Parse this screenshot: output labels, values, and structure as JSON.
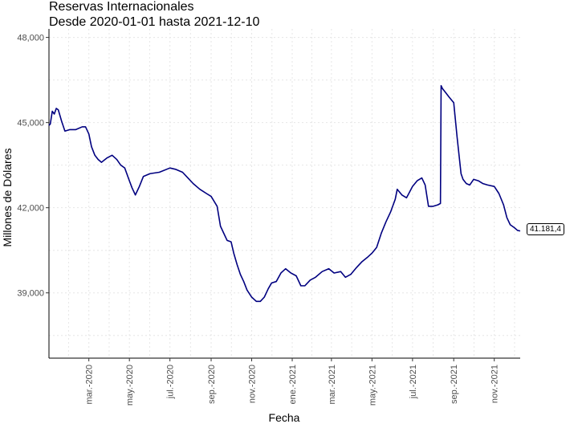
{
  "chart_data": {
    "type": "line",
    "title": "Reservas Internacionales",
    "subtitle": "Desde 2020-01-01 hasta 2021-12-10",
    "xlabel": "Fecha",
    "ylabel": "Millones de Dólares",
    "xlim": [
      "2020-01-01",
      "2021-12-10"
    ],
    "ylim": [
      36700,
      48300
    ],
    "y_ticks": [
      {
        "value": 39000,
        "label": "39,000"
      },
      {
        "value": 42000,
        "label": "42,000"
      },
      {
        "value": 45000,
        "label": "45,000"
      },
      {
        "value": 48000,
        "label": "48,000"
      }
    ],
    "x_ticks": [
      {
        "date": "2020-03-01",
        "label": "mar.-2020"
      },
      {
        "date": "2020-05-01",
        "label": "may.-2020"
      },
      {
        "date": "2020-07-01",
        "label": "jul.-2020"
      },
      {
        "date": "2020-09-01",
        "label": "sep.-2020"
      },
      {
        "date": "2020-11-01",
        "label": "nov.-2020"
      },
      {
        "date": "2021-01-01",
        "label": "ene.-2021"
      },
      {
        "date": "2021-03-01",
        "label": "mar.-2021"
      },
      {
        "date": "2021-05-01",
        "label": "may.-2021"
      },
      {
        "date": "2021-07-01",
        "label": "jul.-2021"
      },
      {
        "date": "2021-09-01",
        "label": "sep.-2021"
      },
      {
        "date": "2021-11-01",
        "label": "nov.-2021"
      }
    ],
    "grid": true,
    "line_color": "#000080",
    "last_value_label": "41.181,4",
    "series": [
      {
        "x": [
          "2020-01-01",
          "2020-01-03",
          "2020-01-06",
          "2020-01-09",
          "2020-01-12",
          "2020-01-15",
          "2020-01-20",
          "2020-01-25",
          "2020-02-01",
          "2020-02-10",
          "2020-02-20",
          "2020-02-25",
          "2020-03-01",
          "2020-03-05",
          "2020-03-10",
          "2020-03-15",
          "2020-03-20",
          "2020-03-28",
          "2020-04-05",
          "2020-04-12",
          "2020-04-18",
          "2020-04-24",
          "2020-05-01",
          "2020-05-05",
          "2020-05-10",
          "2020-05-16",
          "2020-05-22",
          "2020-06-01",
          "2020-06-15",
          "2020-07-01",
          "2020-07-10",
          "2020-07-20",
          "2020-07-28",
          "2020-08-05",
          "2020-08-15",
          "2020-08-25",
          "2020-09-01",
          "2020-09-10",
          "2020-09-15",
          "2020-09-20",
          "2020-09-25",
          "2020-10-01",
          "2020-10-05",
          "2020-10-10",
          "2020-10-15",
          "2020-10-20",
          "2020-10-25",
          "2020-11-01",
          "2020-11-08",
          "2020-11-14",
          "2020-11-20",
          "2020-11-26",
          "2020-12-01",
          "2020-12-08",
          "2020-12-15",
          "2020-12-22",
          "2020-12-30",
          "2021-01-07",
          "2021-01-14",
          "2021-01-20",
          "2021-01-28",
          "2021-02-05",
          "2021-02-15",
          "2021-02-25",
          "2021-03-05",
          "2021-03-15",
          "2021-03-22",
          "2021-03-30",
          "2021-04-08",
          "2021-04-16",
          "2021-04-24",
          "2021-05-01",
          "2021-05-08",
          "2021-05-15",
          "2021-05-22",
          "2021-05-29",
          "2021-06-05",
          "2021-06-08",
          "2021-06-15",
          "2021-06-22",
          "2021-07-01",
          "2021-07-08",
          "2021-07-15",
          "2021-07-20",
          "2021-07-25",
          "2021-08-01",
          "2021-08-08",
          "2021-08-12",
          "2021-08-13",
          "2021-08-15",
          "2021-08-20",
          "2021-08-25",
          "2021-09-01",
          "2021-09-06",
          "2021-09-12",
          "2021-09-15",
          "2021-09-20",
          "2021-09-25",
          "2021-10-01",
          "2021-10-08",
          "2021-10-15",
          "2021-10-22",
          "2021-11-01",
          "2021-11-08",
          "2021-11-15",
          "2021-11-20",
          "2021-11-25",
          "2021-12-01",
          "2021-12-06",
          "2021-12-10"
        ],
        "y": [
          44900,
          44950,
          45400,
          45300,
          45500,
          45450,
          45050,
          44700,
          44750,
          44750,
          44850,
          44850,
          44600,
          44150,
          43850,
          43700,
          43600,
          43750,
          43850,
          43700,
          43500,
          43400,
          42950,
          42700,
          42450,
          42750,
          43100,
          43200,
          43250,
          43400,
          43350,
          43250,
          43050,
          42850,
          42650,
          42500,
          42400,
          42050,
          41350,
          41100,
          40850,
          40800,
          40400,
          40000,
          39650,
          39400,
          39100,
          38850,
          38700,
          38700,
          38850,
          39150,
          39350,
          39400,
          39700,
          39850,
          39700,
          39600,
          39250,
          39250,
          39450,
          39550,
          39750,
          39850,
          39700,
          39750,
          39550,
          39650,
          39900,
          40100,
          40250,
          40400,
          40600,
          41100,
          41500,
          41850,
          42300,
          42650,
          42450,
          42350,
          42750,
          42950,
          43050,
          42800,
          42050,
          42050,
          42100,
          42150,
          46300,
          46200,
          46050,
          45900,
          45700,
          44500,
          43200,
          43000,
          42850,
          42800,
          43000,
          42950,
          42850,
          42800,
          42750,
          42500,
          42100,
          41650,
          41400,
          41300,
          41200,
          41181
        ]
      }
    ]
  }
}
